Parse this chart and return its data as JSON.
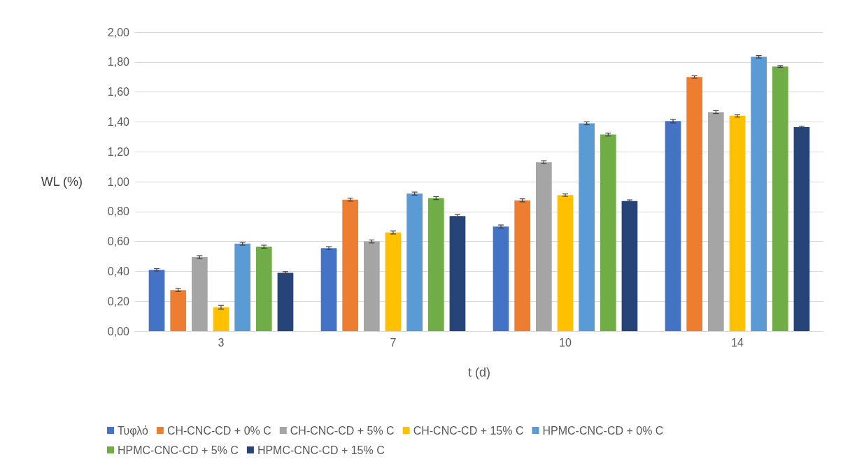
{
  "chart_data": {
    "type": "bar",
    "xlabel": "t (d)",
    "ylabel": "WL (%)",
    "categories": [
      "3",
      "7",
      "10",
      "14"
    ],
    "series": [
      {
        "name": "Τυφλό",
        "color": "#4472c4",
        "values": [
          0.41,
          0.555,
          0.7,
          1.405
        ],
        "errors": [
          0.008,
          0.01,
          0.01,
          0.012
        ]
      },
      {
        "name": "CH-CNC-CD + 0% C",
        "color": "#ed7d31",
        "values": [
          0.275,
          0.88,
          0.875,
          1.7
        ],
        "errors": [
          0.01,
          0.01,
          0.01,
          0.008
        ]
      },
      {
        "name": "CH-CNC-CD + 5% C",
        "color": "#a5a5a5",
        "values": [
          0.495,
          0.6,
          1.13,
          1.465
        ],
        "errors": [
          0.01,
          0.01,
          0.01,
          0.01
        ]
      },
      {
        "name": "CH-CNC-CD + 15% C",
        "color": "#ffc000",
        "values": [
          0.16,
          0.66,
          0.91,
          1.44
        ],
        "errors": [
          0.012,
          0.01,
          0.008,
          0.008
        ]
      },
      {
        "name": "HPMC-CNC-CD + 0% C",
        "color": "#5b9bd5",
        "values": [
          0.585,
          0.92,
          1.39,
          1.835
        ],
        "errors": [
          0.01,
          0.01,
          0.01,
          0.008
        ]
      },
      {
        "name": "HPMC-CNC-CD + 5% C",
        "color": "#70ad47",
        "values": [
          0.565,
          0.89,
          1.315,
          1.77
        ],
        "errors": [
          0.01,
          0.01,
          0.01,
          0.006
        ]
      },
      {
        "name": "HPMC-CNC-CD + 15% C",
        "color": "#264478",
        "values": [
          0.39,
          0.77,
          0.87,
          1.365
        ],
        "errors": [
          0.008,
          0.01,
          0.008,
          0.006
        ]
      }
    ],
    "ylim": [
      0,
      2
    ],
    "yticks": [
      {
        "value": 0,
        "label": "0,00"
      },
      {
        "value": 0.2,
        "label": "0,20"
      },
      {
        "value": 0.4,
        "label": "0,40"
      },
      {
        "value": 0.6,
        "label": "0,60"
      },
      {
        "value": 0.8,
        "label": "0,80"
      },
      {
        "value": 1,
        "label": "1,00"
      },
      {
        "value": 1.2,
        "label": "1,20"
      },
      {
        "value": 1.4,
        "label": "1,40"
      },
      {
        "value": 1.6,
        "label": "1,60"
      },
      {
        "value": 1.8,
        "label": "1,80"
      },
      {
        "value": 2,
        "label": "2,00"
      }
    ],
    "grid": "y",
    "legend": "bottom"
  }
}
